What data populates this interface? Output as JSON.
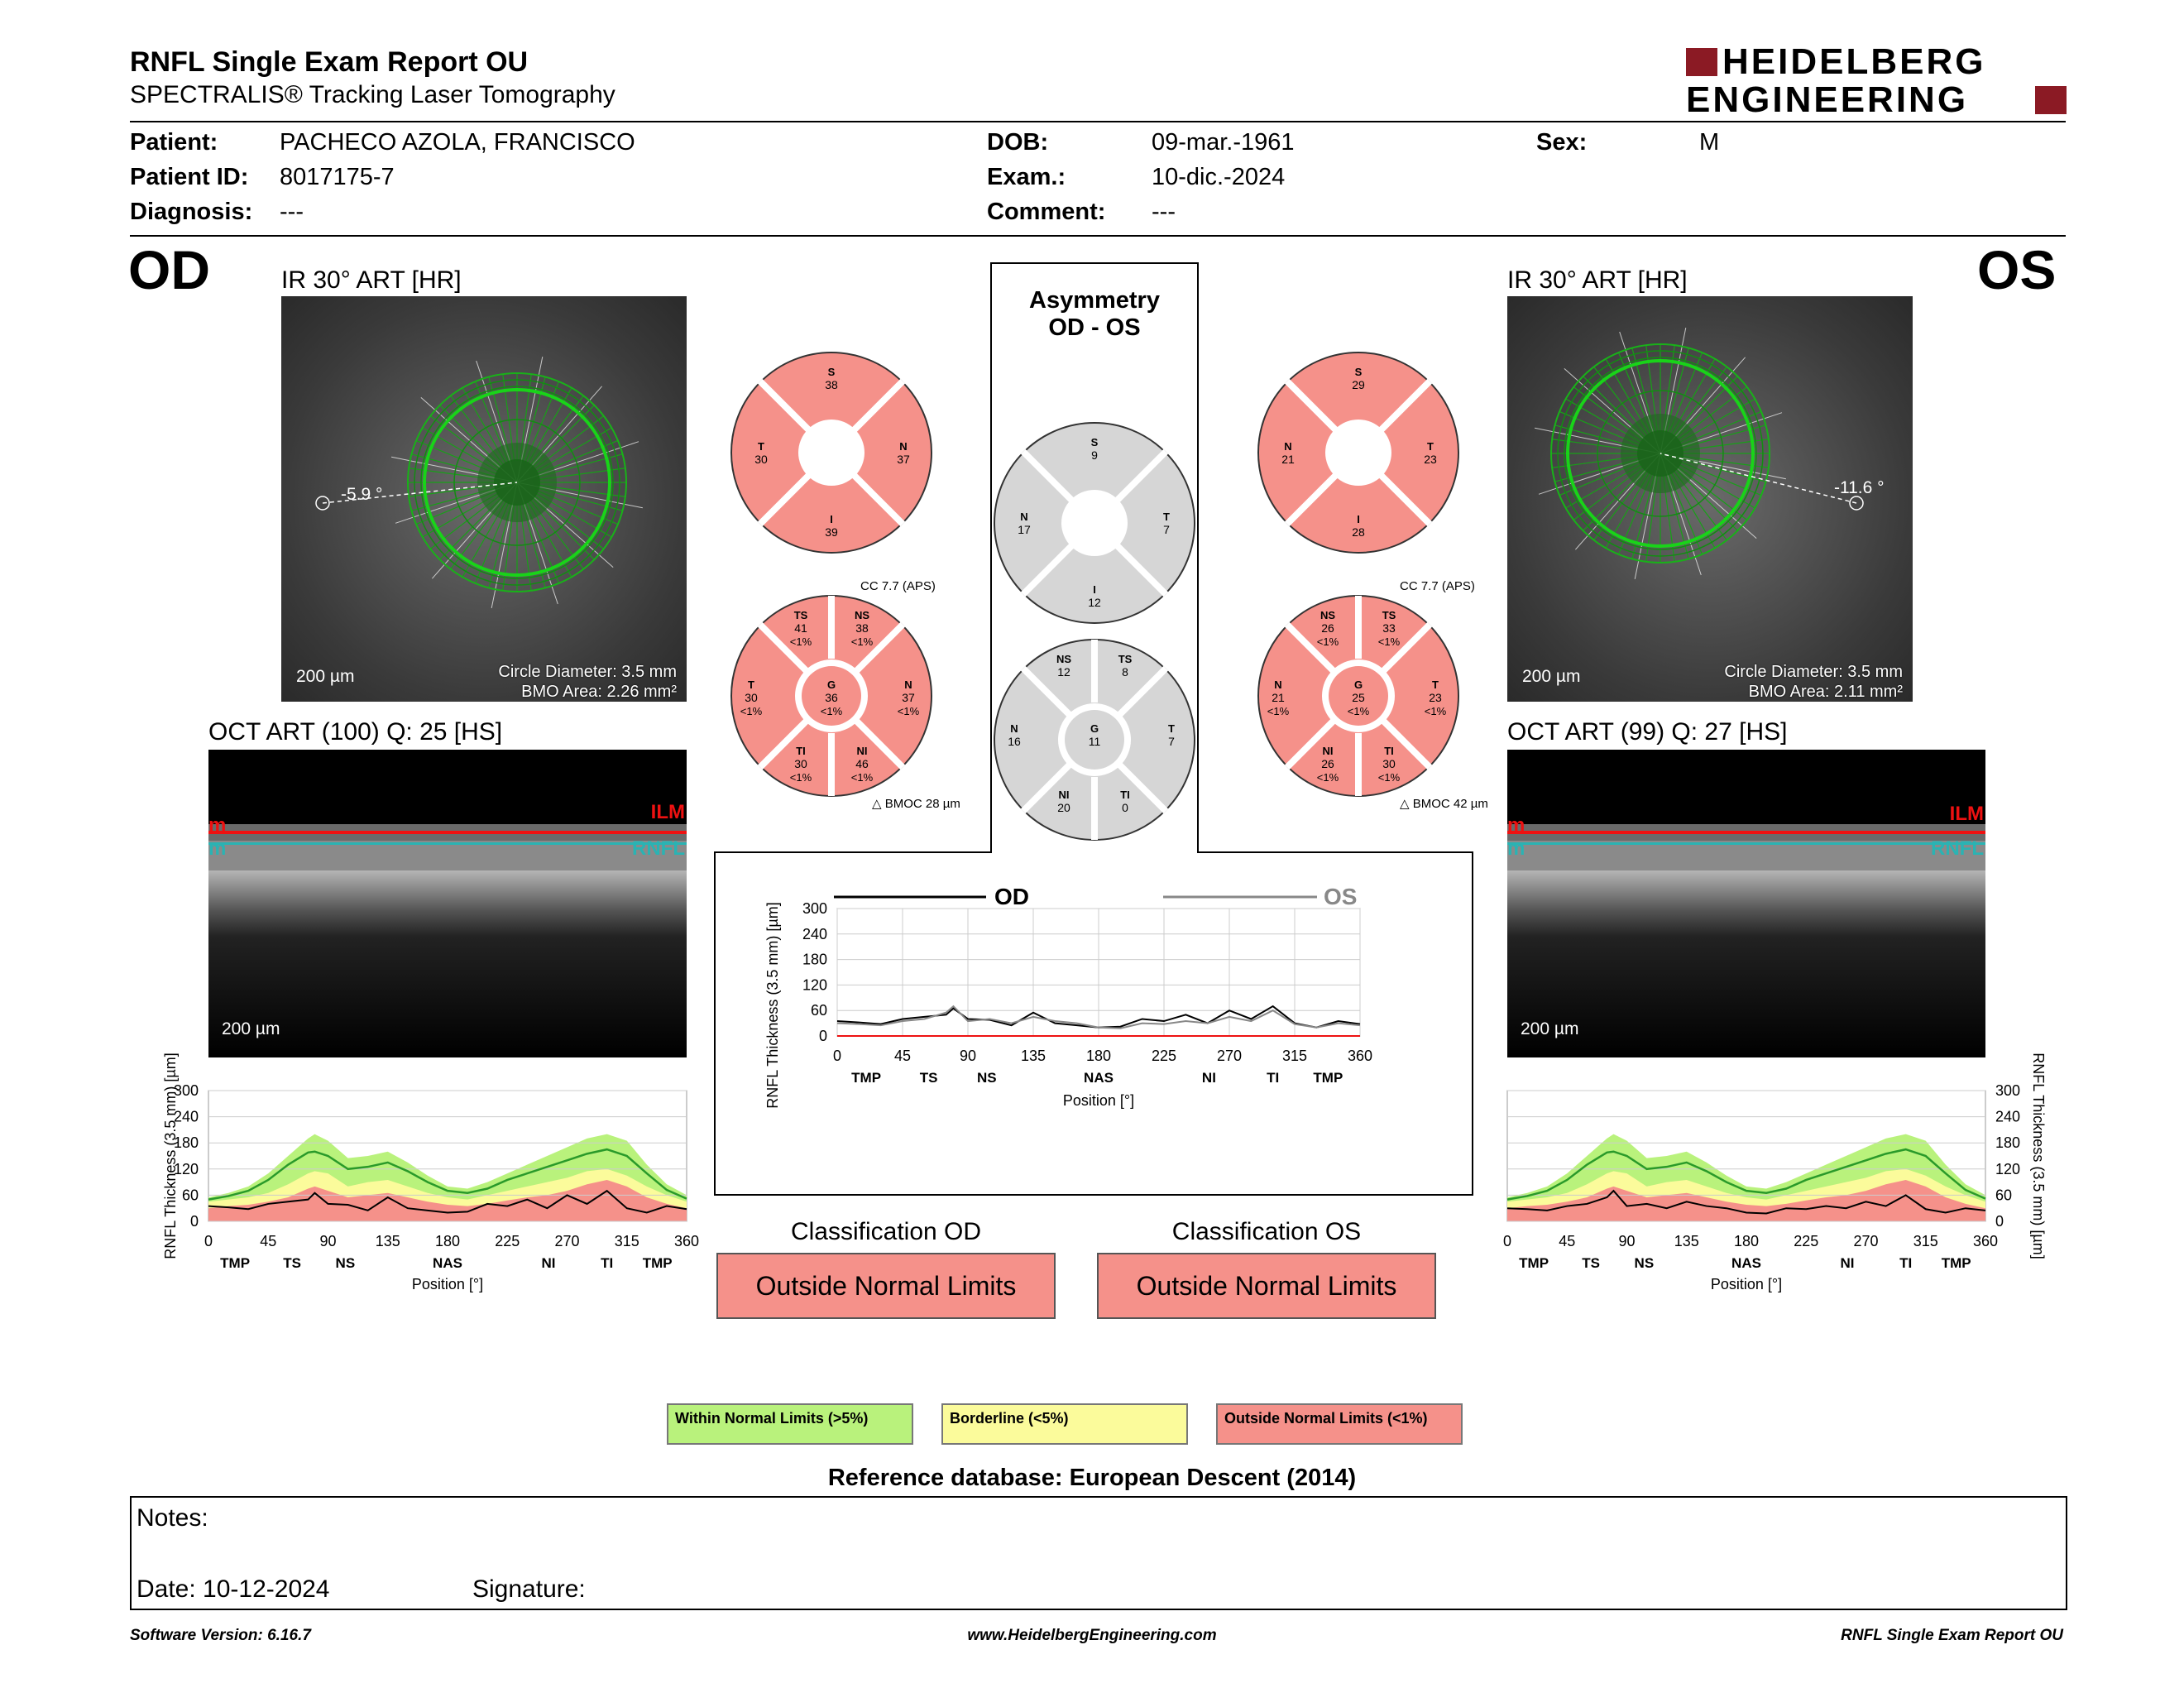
{
  "header": {
    "title": "RNFL Single Exam Report OU",
    "subtitle": "SPECTRALIS® Tracking Laser Tomography",
    "brand_line1": "HEIDELBERG",
    "brand_line2": "ENGINEERING",
    "brand_color": "#8b1a24"
  },
  "patient": {
    "patient_label": "Patient:",
    "patient_value": "PACHECO AZOLA, FRANCISCO",
    "id_label": "Patient ID:",
    "id_value": "8017175-7",
    "diag_label": "Diagnosis:",
    "diag_value": "---",
    "dob_label": "DOB:",
    "dob_value": "09-mar.-1961",
    "exam_label": "Exam.:",
    "exam_value": "10-dic.-2024",
    "comment_label": "Comment:",
    "comment_value": "---",
    "sex_label": "Sex:",
    "sex_value": "M"
  },
  "od": {
    "eye": "OD",
    "ir_caption": "IR 30° ART [HR]",
    "angle": "-5.9 °",
    "scale": "200 µm",
    "circle_diameter": "Circle Diameter: 3.5 mm",
    "bmo_area": "BMO Area: 2.26 mm²",
    "oct_caption": "OCT ART (100) Q: 25 [HS]",
    "oct_scale": "200 µm",
    "ilm": "ILM",
    "rnfl": "RNFL",
    "edge_letter": "m",
    "sectors4": {
      "S": "38",
      "T": "30",
      "N": "37",
      "I": "39"
    },
    "cc": "CC 7.7 (APS)",
    "bmoc": "BMOC 28 µm",
    "sectors6": {
      "TS": [
        "41",
        "<1%"
      ],
      "NS": [
        "38",
        "<1%"
      ],
      "T": [
        "30",
        "<1%"
      ],
      "G": [
        "36",
        "<1%"
      ],
      "N": [
        "37",
        "<1%"
      ],
      "TI": [
        "30",
        "<1%"
      ],
      "NI": [
        "46",
        "<1%"
      ]
    },
    "classification_title": "Classification OD",
    "classification": "Outside Normal Limits"
  },
  "os": {
    "eye": "OS",
    "ir_caption": "IR 30° ART [HR]",
    "angle": "-11.6 °",
    "scale": "200 µm",
    "circle_diameter": "Circle Diameter: 3.5 mm",
    "bmo_area": "BMO Area: 2.11 mm²",
    "oct_caption": "OCT ART (99) Q: 27 [HS]",
    "oct_scale": "200 µm",
    "ilm": "ILM",
    "rnfl": "RNFL",
    "edge_letter": "m",
    "sectors4": {
      "S": "29",
      "N": "21",
      "T": "23",
      "I": "28"
    },
    "cc": "CC 7.7 (APS)",
    "bmoc": "BMOC 42 µm",
    "sectors6": {
      "NS": [
        "26",
        "<1%"
      ],
      "TS": [
        "33",
        "<1%"
      ],
      "N": [
        "21",
        "<1%"
      ],
      "G": [
        "25",
        "<1%"
      ],
      "T": [
        "23",
        "<1%"
      ],
      "NI": [
        "26",
        "<1%"
      ],
      "TI": [
        "30",
        "<1%"
      ]
    },
    "classification_title": "Classification OS",
    "classification": "Outside Normal Limits"
  },
  "asym": {
    "title1": "Asymmetry",
    "title2": "OD - OS",
    "sectors4": {
      "S": "9",
      "N": "17",
      "T": "7",
      "I": "12"
    },
    "sectors6": {
      "NS": "12",
      "TS": "8",
      "N": "16",
      "G": "11",
      "T": "7",
      "NI": "20",
      "TI": "0"
    }
  },
  "chart_data": [
    {
      "type": "line",
      "title": "OD",
      "ylabel": "RNFL Thickness (3.5 mm) [µm]",
      "xlabel": "Position [°]",
      "xlim": [
        0,
        360
      ],
      "ylim": [
        0,
        300
      ],
      "xticks": [
        "0",
        "45",
        "90",
        "135",
        "180",
        "225",
        "270",
        "315",
        "360"
      ],
      "yticks": [
        "0",
        "60",
        "120",
        "180",
        "240",
        "300"
      ],
      "sectors": [
        "TMP",
        "TS",
        "NS",
        "NAS",
        "NI",
        "TI",
        "TMP"
      ],
      "sector_pos": [
        20,
        63,
        103,
        180,
        256,
        300,
        338
      ],
      "x": [
        0,
        15,
        30,
        45,
        60,
        75,
        80,
        90,
        105,
        120,
        135,
        150,
        165,
        180,
        195,
        210,
        225,
        240,
        255,
        270,
        285,
        300,
        315,
        330,
        345,
        360
      ],
      "series": [
        {
          "name": "Within Normal Limits",
          "values": [
            55,
            65,
            80,
            110,
            150,
            190,
            200,
            185,
            145,
            150,
            160,
            135,
            105,
            80,
            75,
            90,
            110,
            130,
            150,
            170,
            190,
            200,
            185,
            130,
            85,
            60
          ]
        },
        {
          "name": "Borderline",
          "values": [
            45,
            50,
            55,
            65,
            85,
            110,
            115,
            110,
            80,
            90,
            95,
            80,
            65,
            55,
            50,
            60,
            70,
            80,
            90,
            100,
            115,
            120,
            105,
            80,
            60,
            45
          ]
        },
        {
          "name": "Outside Normal Limits",
          "values": [
            30,
            35,
            38,
            45,
            55,
            75,
            80,
            70,
            55,
            60,
            65,
            55,
            45,
            38,
            35,
            40,
            48,
            55,
            60,
            70,
            85,
            95,
            80,
            55,
            40,
            30
          ]
        },
        {
          "name": "Normal mean",
          "values": [
            50,
            58,
            70,
            95,
            130,
            158,
            160,
            150,
            120,
            125,
            135,
            115,
            90,
            70,
            65,
            75,
            95,
            110,
            125,
            140,
            155,
            165,
            150,
            110,
            72,
            52
          ]
        },
        {
          "name": "Patient",
          "values": [
            35,
            32,
            28,
            40,
            45,
            50,
            65,
            40,
            38,
            25,
            55,
            30,
            25,
            20,
            22,
            40,
            35,
            50,
            30,
            60,
            40,
            70,
            30,
            20,
            35,
            28
          ]
        }
      ]
    },
    {
      "type": "line",
      "title": "OS",
      "ylabel": "RNFL Thickness (3.5 mm) [µm]",
      "xlabel": "Position [°]",
      "xlim": [
        0,
        360
      ],
      "ylim": [
        0,
        300
      ],
      "xticks": [
        "0",
        "45",
        "90",
        "135",
        "180",
        "225",
        "270",
        "315",
        "360"
      ],
      "yticks": [
        "0",
        "60",
        "120",
        "180",
        "240",
        "300"
      ],
      "sectors": [
        "TMP",
        "TS",
        "NS",
        "NAS",
        "NI",
        "TI",
        "TMP"
      ],
      "sector_pos": [
        20,
        63,
        103,
        180,
        256,
        300,
        338
      ],
      "x": [
        0,
        15,
        30,
        45,
        60,
        75,
        80,
        90,
        105,
        120,
        135,
        150,
        165,
        180,
        195,
        210,
        225,
        240,
        255,
        270,
        285,
        300,
        315,
        330,
        345,
        360
      ],
      "series": [
        {
          "name": "Within Normal Limits",
          "values": [
            55,
            65,
            80,
            110,
            150,
            190,
            200,
            185,
            145,
            150,
            160,
            135,
            105,
            80,
            75,
            90,
            110,
            130,
            150,
            170,
            190,
            200,
            185,
            130,
            85,
            60
          ]
        },
        {
          "name": "Borderline",
          "values": [
            45,
            50,
            55,
            65,
            85,
            110,
            115,
            110,
            80,
            90,
            95,
            80,
            65,
            55,
            50,
            60,
            70,
            80,
            90,
            100,
            115,
            120,
            105,
            80,
            60,
            45
          ]
        },
        {
          "name": "Outside Normal Limits",
          "values": [
            30,
            35,
            38,
            45,
            55,
            75,
            80,
            70,
            55,
            60,
            65,
            55,
            45,
            38,
            35,
            40,
            48,
            55,
            60,
            70,
            85,
            95,
            80,
            55,
            40,
            30
          ]
        },
        {
          "name": "Normal mean",
          "values": [
            50,
            58,
            70,
            95,
            130,
            158,
            160,
            150,
            120,
            125,
            135,
            115,
            90,
            70,
            65,
            75,
            95,
            110,
            125,
            140,
            155,
            165,
            150,
            110,
            72,
            52
          ]
        },
        {
          "name": "Patient",
          "values": [
            30,
            28,
            25,
            35,
            40,
            55,
            70,
            35,
            40,
            30,
            45,
            35,
            30,
            20,
            18,
            30,
            28,
            35,
            30,
            45,
            35,
            60,
            28,
            20,
            30,
            25
          ]
        }
      ]
    },
    {
      "type": "line",
      "ylabel": "RNFL Thickness (3.5 mm) [µm]",
      "xlabel": "Position [°]",
      "xlim": [
        0,
        360
      ],
      "ylim": [
        0,
        300
      ],
      "xticks": [
        "0",
        "45",
        "90",
        "135",
        "180",
        "225",
        "270",
        "315",
        "360"
      ],
      "yticks": [
        "0",
        "60",
        "120",
        "180",
        "240",
        "300"
      ],
      "sectors": [
        "TMP",
        "TS",
        "NS",
        "NAS",
        "NI",
        "TI",
        "TMP"
      ],
      "sector_pos": [
        20,
        63,
        103,
        180,
        256,
        300,
        338
      ],
      "legend_od": "OD",
      "legend_os": "OS",
      "x": [
        0,
        15,
        30,
        45,
        60,
        75,
        80,
        90,
        105,
        120,
        135,
        150,
        165,
        180,
        195,
        210,
        225,
        240,
        255,
        270,
        285,
        300,
        315,
        330,
        345,
        360
      ],
      "series": [
        {
          "name": "OD",
          "values": [
            35,
            32,
            28,
            40,
            45,
            50,
            65,
            40,
            38,
            25,
            55,
            30,
            25,
            20,
            22,
            40,
            35,
            50,
            30,
            60,
            40,
            70,
            30,
            20,
            35,
            28
          ]
        },
        {
          "name": "OS",
          "values": [
            30,
            28,
            25,
            35,
            40,
            55,
            70,
            35,
            40,
            30,
            45,
            35,
            30,
            20,
            18,
            30,
            28,
            35,
            30,
            45,
            35,
            60,
            28,
            20,
            30,
            25
          ]
        }
      ]
    }
  ],
  "legend": {
    "within": "Within Normal Limits (>5%)",
    "borderline": "Borderline (<5%)",
    "outside": "Outside Normal Limits (<1%)",
    "within_color": "#b9f27c",
    "borderline_color": "#fbfb9b",
    "outside_color": "#f5918a"
  },
  "reference": "Reference database: European Descent (2014)",
  "notes": {
    "notes_label": "Notes:",
    "date_label": "Date: 10-12-2024",
    "signature_label": "Signature:"
  },
  "footer": {
    "software": "Software Version: 6.16.7",
    "url": "www.HeidelbergEngineering.com",
    "report": "RNFL Single Exam Report OU"
  }
}
